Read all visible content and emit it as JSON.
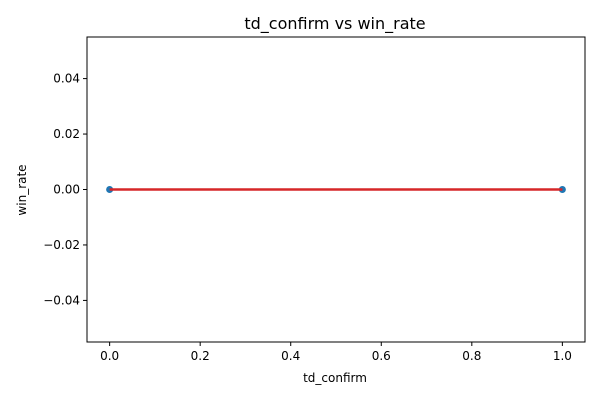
{
  "chart_data": {
    "type": "scatter",
    "title": "td_confirm vs win_rate",
    "xlabel": "td_confirm",
    "ylabel": "win_rate",
    "xlim": [
      -0.05,
      1.05
    ],
    "ylim": [
      -0.055,
      0.055
    ],
    "x_ticks": [
      0.0,
      0.2,
      0.4,
      0.6,
      0.8,
      1.0
    ],
    "x_tick_labels": [
      "0.0",
      "0.2",
      "0.4",
      "0.6",
      "0.8",
      "1.0"
    ],
    "y_ticks": [
      -0.04,
      -0.02,
      0.0,
      0.02,
      0.04
    ],
    "y_tick_labels": [
      "−0.04",
      "−0.02",
      "0.00",
      "0.02",
      "0.04"
    ],
    "grid": false,
    "series": [
      {
        "kind": "scatter",
        "x": [
          0.0,
          1.0
        ],
        "y": [
          0.0,
          0.0
        ],
        "color": "#1f77b4"
      },
      {
        "kind": "line",
        "x": [
          0.0,
          1.0
        ],
        "y": [
          0.0,
          0.0
        ],
        "color": "#d62728"
      }
    ]
  }
}
